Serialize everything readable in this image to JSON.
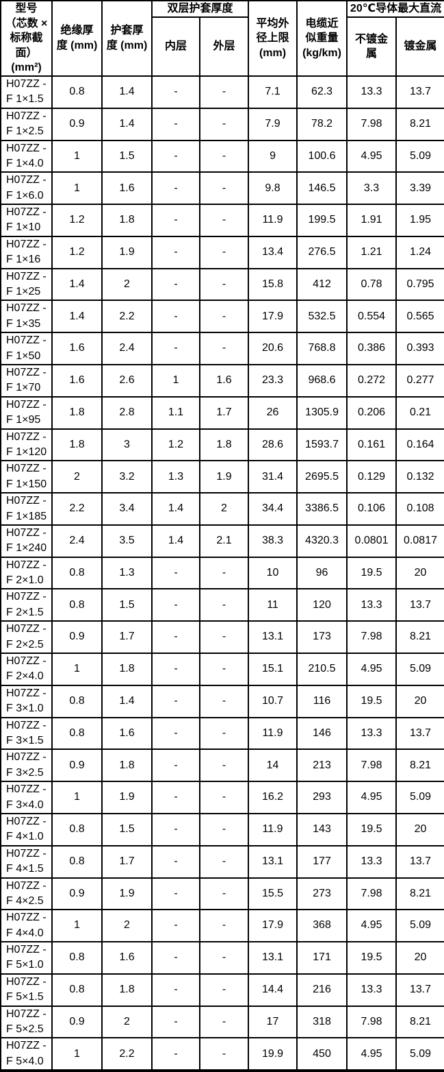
{
  "page": {
    "background_color": "#ffffff",
    "border_color": "#000000",
    "text_color": "#000000"
  },
  "table": {
    "header": {
      "model": "型号\n（芯数 ×\n标称截\n面）\n(mm²)",
      "insulation_thickness": "绝缘厚\n度 (mm)",
      "sheath_thickness": "护套厚\n度 (mm)",
      "double_sheath_group": "双层护套厚度",
      "inner_layer": "内层",
      "outer_layer": "外层",
      "avg_outer_diameter": "平均外\n径上限\n(mm)",
      "approx_weight": "电缆近\n似重量\n(kg/km)",
      "max_dc_group": "20℃导体最大直流",
      "unplated": "不镀金\n属",
      "plated": "镀金属"
    },
    "rows": [
      [
        "H07ZZ -\nF 1×1.5",
        "0.8",
        "1.4",
        "-",
        "-",
        "7.1",
        "62.3",
        "13.3",
        "13.7"
      ],
      [
        "H07ZZ -\nF 1×2.5",
        "0.9",
        "1.4",
        "-",
        "-",
        "7.9",
        "78.2",
        "7.98",
        "8.21"
      ],
      [
        "H07ZZ -\nF 1×4.0",
        "1",
        "1.5",
        "-",
        "-",
        "9",
        "100.6",
        "4.95",
        "5.09"
      ],
      [
        "H07ZZ -\nF 1×6.0",
        "1",
        "1.6",
        "-",
        "-",
        "9.8",
        "146.5",
        "3.3",
        "3.39"
      ],
      [
        "H07ZZ -\nF 1×10",
        "1.2",
        "1.8",
        "-",
        "-",
        "11.9",
        "199.5",
        "1.91",
        "1.95"
      ],
      [
        "H07ZZ -\nF 1×16",
        "1.2",
        "1.9",
        "-",
        "-",
        "13.4",
        "276.5",
        "1.21",
        "1.24"
      ],
      [
        "H07ZZ -\nF 1×25",
        "1.4",
        "2",
        "-",
        "-",
        "15.8",
        "412",
        "0.78",
        "0.795"
      ],
      [
        "H07ZZ -\nF 1×35",
        "1.4",
        "2.2",
        "-",
        "-",
        "17.9",
        "532.5",
        "0.554",
        "0.565"
      ],
      [
        "H07ZZ -\nF 1×50",
        "1.6",
        "2.4",
        "-",
        "-",
        "20.6",
        "768.8",
        "0.386",
        "0.393"
      ],
      [
        "H07ZZ -\nF 1×70",
        "1.6",
        "2.6",
        "1",
        "1.6",
        "23.3",
        "968.6",
        "0.272",
        "0.277"
      ],
      [
        "H07ZZ -\nF 1×95",
        "1.8",
        "2.8",
        "1.1",
        "1.7",
        "26",
        "1305.9",
        "0.206",
        "0.21"
      ],
      [
        "H07ZZ -\nF 1×120",
        "1.8",
        "3",
        "1.2",
        "1.8",
        "28.6",
        "1593.7",
        "0.161",
        "0.164"
      ],
      [
        "H07ZZ -\nF 1×150",
        "2",
        "3.2",
        "1.3",
        "1.9",
        "31.4",
        "2695.5",
        "0.129",
        "0.132"
      ],
      [
        "H07ZZ -\nF 1×185",
        "2.2",
        "3.4",
        "1.4",
        "2",
        "34.4",
        "3386.5",
        "0.106",
        "0.108"
      ],
      [
        "H07ZZ -\nF 1×240",
        "2.4",
        "3.5",
        "1.4",
        "2.1",
        "38.3",
        "4320.3",
        "0.0801",
        "0.0817"
      ],
      [
        "H07ZZ -\nF 2×1.0",
        "0.8",
        "1.3",
        "-",
        "-",
        "10",
        "96",
        "19.5",
        "20"
      ],
      [
        "H07ZZ -\nF 2×1.5",
        "0.8",
        "1.5",
        "-",
        "-",
        "11",
        "120",
        "13.3",
        "13.7"
      ],
      [
        "H07ZZ -\nF 2×2.5",
        "0.9",
        "1.7",
        "-",
        "-",
        "13.1",
        "173",
        "7.98",
        "8.21"
      ],
      [
        "H07ZZ -\nF 2×4.0",
        "1",
        "1.8",
        "-",
        "-",
        "15.1",
        "210.5",
        "4.95",
        "5.09"
      ],
      [
        "H07ZZ -\nF 3×1.0",
        "0.8",
        "1.4",
        "-",
        "-",
        "10.7",
        "116",
        "19.5",
        "20"
      ],
      [
        "H07ZZ -\nF 3×1.5",
        "0.8",
        "1.6",
        "-",
        "-",
        "11.9",
        "146",
        "13.3",
        "13.7"
      ],
      [
        "H07ZZ -\nF 3×2.5",
        "0.9",
        "1.8",
        "-",
        "-",
        "14",
        "213",
        "7.98",
        "8.21"
      ],
      [
        "H07ZZ -\nF 3×4.0",
        "1",
        "1.9",
        "-",
        "-",
        "16.2",
        "293",
        "4.95",
        "5.09"
      ],
      [
        "H07ZZ -\nF 4×1.0",
        "0.8",
        "1.5",
        "-",
        "-",
        "11.9",
        "143",
        "19.5",
        "20"
      ],
      [
        "H07ZZ -\nF 4×1.5",
        "0.8",
        "1.7",
        "-",
        "-",
        "13.1",
        "177",
        "13.3",
        "13.7"
      ],
      [
        "H07ZZ -\nF 4×2.5",
        "0.9",
        "1.9",
        "-",
        "-",
        "15.5",
        "273",
        "7.98",
        "8.21"
      ],
      [
        "H07ZZ -\nF 4×4.0",
        "1",
        "2",
        "-",
        "-",
        "17.9",
        "368",
        "4.95",
        "5.09"
      ],
      [
        "H07ZZ -\nF 5×1.0",
        "0.8",
        "1.6",
        "-",
        "-",
        "13.1",
        "171",
        "19.5",
        "20"
      ],
      [
        "H07ZZ -\nF 5×1.5",
        "0.8",
        "1.8",
        "-",
        "-",
        "14.4",
        "216",
        "13.3",
        "13.7"
      ],
      [
        "H07ZZ -\nF 5×2.5",
        "0.9",
        "2",
        "-",
        "-",
        "17",
        "318",
        "7.98",
        "8.21"
      ],
      [
        "H07ZZ -\nF 5×4.0",
        "1",
        "2.2",
        "-",
        "-",
        "19.9",
        "450",
        "4.95",
        "5.09"
      ]
    ]
  }
}
